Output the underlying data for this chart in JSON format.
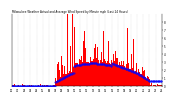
{
  "title": "Milwaukee Weather Actual and Average Wind Speed by Minute mph (Last 24 Hours)",
  "n_points": 1440,
  "background_color": "#ffffff",
  "bar_color": "#ff0000",
  "line_color": "#0000ff",
  "grid_color": "#b0b0b0",
  "ylim": [
    0,
    9
  ],
  "yticks": [
    0,
    1,
    2,
    3,
    4,
    5,
    6,
    7,
    8
  ],
  "xlim": [
    0,
    1440
  ],
  "seed": 99
}
